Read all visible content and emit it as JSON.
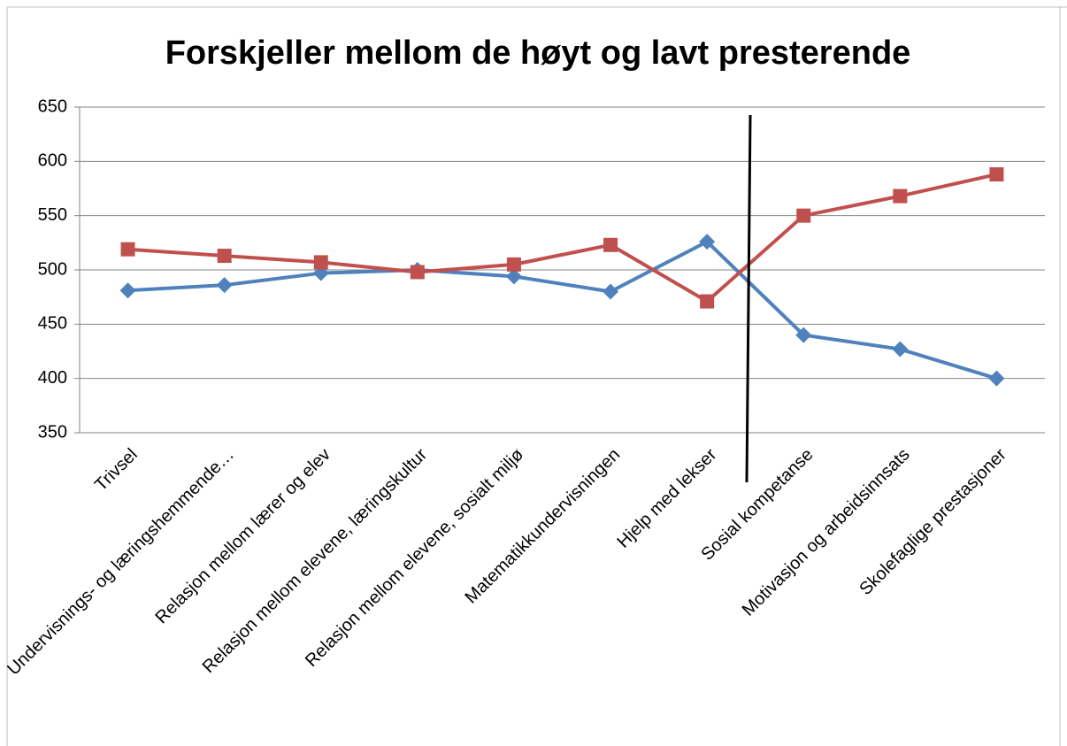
{
  "chart_data": {
    "type": "line",
    "title": "Forskjeller mellom de høyt og lavt presterende",
    "categories": [
      "Trivsel",
      "Undervisnings- og læringshemmende…",
      "Relasjon mellom lærer og elev",
      "Relasjon mellom elevene, læringskultur",
      "Relasjon mellom elevene, sosialt miljø",
      "Matematikkundervisningen",
      "Hjelp med lekser",
      "Sosial kompetanse",
      "Motivasjon og arbeidsinnsats",
      "Skolefaglige prestasjoner"
    ],
    "series": [
      {
        "color": "#4f81bd",
        "marker": "diamond",
        "values": [
          481,
          486,
          497,
          500,
          494,
          480,
          526,
          440,
          427,
          400
        ]
      },
      {
        "color": "#c0504d",
        "marker": "square",
        "values": [
          519,
          513,
          507,
          498,
          505,
          523,
          471,
          550,
          568,
          588
        ]
      }
    ],
    "ylim": [
      350,
      650
    ],
    "yticks": [
      350,
      400,
      450,
      500,
      550,
      600,
      650
    ],
    "grid": true
  }
}
